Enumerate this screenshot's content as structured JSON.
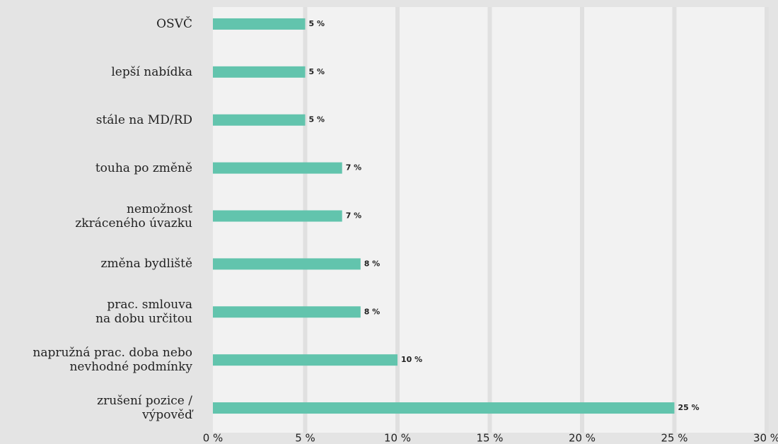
{
  "chart_data": {
    "type": "bar",
    "orientation": "horizontal",
    "categories": [
      "OSVČ",
      "lepší nabídka",
      "stále na MD/RD",
      "touha po změně",
      "nemožnost\nzkráceného úvazku",
      "změna bydliště",
      "prac. smlouva\nna dobu určitou",
      "napružná prac. doba nebo\nnevhodné podmínky",
      "zrušení pozice /\nvýpověď"
    ],
    "values": [
      5,
      5,
      5,
      7,
      7,
      8,
      8,
      10,
      25
    ],
    "value_labels": [
      "5 %",
      "5 %",
      "5 %",
      "7 %",
      "7 %",
      "8 %",
      "8 %",
      "10 %",
      "25 %"
    ],
    "color": "#62c4ad",
    "xlim": [
      0,
      30
    ],
    "xticks": [
      {
        "value": 0,
        "label": "0 %"
      },
      {
        "value": 5,
        "label": "5 %"
      },
      {
        "value": 10,
        "label": "10 %"
      },
      {
        "value": 15,
        "label": "15 %"
      },
      {
        "value": 20,
        "label": "20 %"
      },
      {
        "value": 25,
        "label": "25 %"
      },
      {
        "value": 30,
        "label": "30 %"
      }
    ],
    "grid": true
  }
}
